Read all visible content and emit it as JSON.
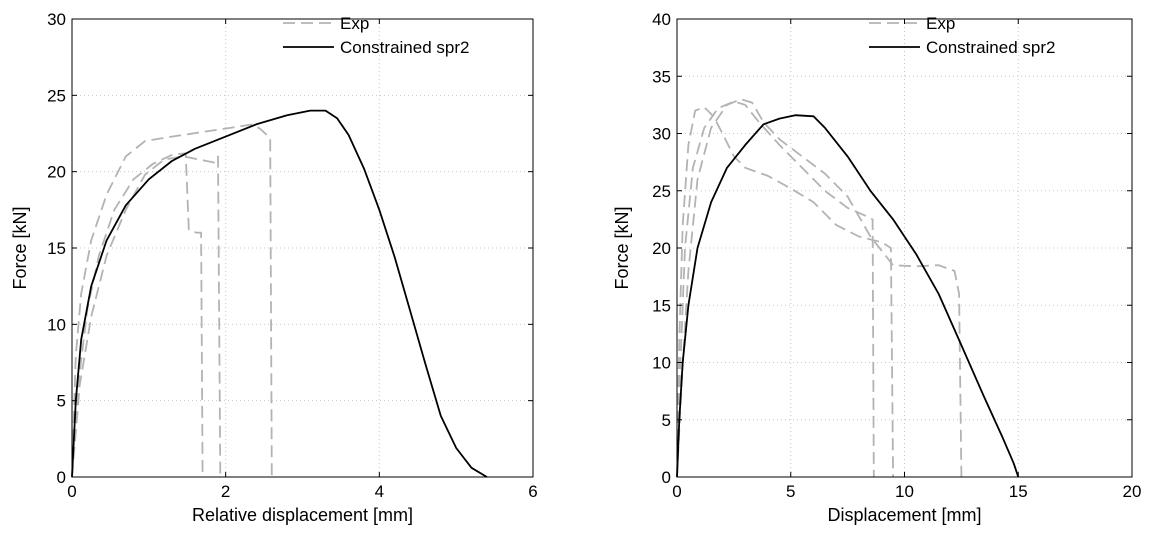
{
  "chart_data": [
    {
      "type": "line",
      "title": "",
      "xlabel": "Relative displacement [mm]",
      "ylabel": "Force [kN]",
      "xlim": [
        0,
        6
      ],
      "ylim": [
        0,
        30
      ],
      "xticks": [
        0,
        2,
        4,
        6
      ],
      "yticks": [
        0,
        5,
        10,
        15,
        20,
        25,
        30
      ],
      "grid": true,
      "legend_position": "top-right",
      "series": [
        {
          "name": "Exp",
          "color": "#b3b3b3",
          "dash": "dashed",
          "points": [
            [
              0,
              0
            ],
            [
              0.05,
              8
            ],
            [
              0.12,
              12
            ],
            [
              0.25,
              15.5
            ],
            [
              0.45,
              18.5
            ],
            [
              0.7,
              21
            ],
            [
              0.95,
              22
            ],
            [
              1.3,
              22.3
            ],
            [
              1.7,
              22.6
            ],
            [
              2.1,
              22.9
            ],
            [
              2.35,
              23.1
            ],
            [
              2.45,
              22.8
            ],
            [
              2.58,
              22.2
            ],
            [
              2.6,
              0
            ]
          ]
        },
        {
          "name": "",
          "color": "#b3b3b3",
          "dash": "dashed",
          "points": [
            [
              0,
              0
            ],
            [
              0.08,
              6
            ],
            [
              0.2,
              11
            ],
            [
              0.35,
              14.5
            ],
            [
              0.55,
              17.5
            ],
            [
              0.8,
              19.5
            ],
            [
              1.05,
              20.5
            ],
            [
              1.3,
              21.1
            ],
            [
              1.48,
              21.2
            ],
            [
              1.52,
              16.2
            ],
            [
              1.62,
              16.0
            ],
            [
              1.68,
              16.0
            ],
            [
              1.7,
              0
            ]
          ]
        },
        {
          "name": "",
          "color": "#b3b3b3",
          "dash": "dashed",
          "points": [
            [
              0,
              0
            ],
            [
              0.1,
              6
            ],
            [
              0.25,
              10.5
            ],
            [
              0.45,
              14.5
            ],
            [
              0.7,
              17.5
            ],
            [
              0.95,
              19.8
            ],
            [
              1.2,
              20.8
            ],
            [
              1.45,
              21.0
            ],
            [
              1.65,
              20.8
            ],
            [
              1.85,
              20.6
            ],
            [
              1.9,
              21.0
            ],
            [
              1.93,
              0
            ]
          ]
        },
        {
          "name": "Constrained spr2",
          "color": "#000000",
          "dash": "solid",
          "points": [
            [
              0,
              0
            ],
            [
              0.05,
              5
            ],
            [
              0.12,
              9
            ],
            [
              0.25,
              12.5
            ],
            [
              0.45,
              15.5
            ],
            [
              0.7,
              17.8
            ],
            [
              1.0,
              19.5
            ],
            [
              1.3,
              20.7
            ],
            [
              1.6,
              21.5
            ],
            [
              2.0,
              22.3
            ],
            [
              2.4,
              23.1
            ],
            [
              2.8,
              23.7
            ],
            [
              3.1,
              24.0
            ],
            [
              3.3,
              24.0
            ],
            [
              3.45,
              23.5
            ],
            [
              3.6,
              22.4
            ],
            [
              3.8,
              20.2
            ],
            [
              4.0,
              17.5
            ],
            [
              4.2,
              14.4
            ],
            [
              4.4,
              10.9
            ],
            [
              4.6,
              7.4
            ],
            [
              4.8,
              4.0
            ],
            [
              5.0,
              1.9
            ],
            [
              5.2,
              0.6
            ],
            [
              5.4,
              0
            ]
          ]
        }
      ]
    },
    {
      "type": "line",
      "title": "",
      "xlabel": "Displacement [mm]",
      "ylabel": "Force [kN]",
      "xlim": [
        0,
        20
      ],
      "ylim": [
        0,
        40
      ],
      "xticks": [
        0,
        5,
        10,
        15,
        20
      ],
      "yticks": [
        0,
        5,
        10,
        15,
        20,
        25,
        30,
        35,
        40
      ],
      "grid": true,
      "legend_position": "top-right",
      "series": [
        {
          "name": "Exp",
          "color": "#b3b3b3",
          "dash": "dashed",
          "points": [
            [
              0,
              0
            ],
            [
              0.1,
              12
            ],
            [
              0.25,
              22
            ],
            [
              0.5,
              29
            ],
            [
              0.8,
              32
            ],
            [
              1.2,
              32.3
            ],
            [
              1.6,
              31.5
            ],
            [
              2.0,
              30
            ],
            [
              2.5,
              28
            ],
            [
              3.0,
              27
            ],
            [
              4.0,
              26.3
            ],
            [
              5.0,
              25.2
            ],
            [
              6.0,
              24
            ],
            [
              7.0,
              22
            ],
            [
              8.0,
              21
            ],
            [
              9.0,
              20.5
            ],
            [
              9.4,
              20.0
            ],
            [
              9.5,
              0
            ]
          ]
        },
        {
          "name": "",
          "color": "#b3b3b3",
          "dash": "dashed",
          "points": [
            [
              0,
              0
            ],
            [
              0.15,
              10
            ],
            [
              0.35,
              20
            ],
            [
              0.7,
              27
            ],
            [
              1.2,
              30.5
            ],
            [
              1.8,
              32.2
            ],
            [
              2.5,
              32.8
            ],
            [
              3.0,
              32.5
            ],
            [
              3.6,
              31
            ],
            [
              4.5,
              29
            ],
            [
              5.5,
              27
            ],
            [
              6.5,
              25
            ],
            [
              7.5,
              23.5
            ],
            [
              8.3,
              22.8
            ],
            [
              8.6,
              22.5
            ],
            [
              8.65,
              0
            ]
          ]
        },
        {
          "name": "",
          "color": "#b3b3b3",
          "dash": "dashed",
          "points": [
            [
              0,
              0
            ],
            [
              0.2,
              8
            ],
            [
              0.5,
              18
            ],
            [
              0.9,
              26
            ],
            [
              1.5,
              30.5
            ],
            [
              2.2,
              32.5
            ],
            [
              2.8,
              33
            ],
            [
              3.3,
              32.7
            ],
            [
              3.8,
              31
            ],
            [
              4.5,
              29.5
            ],
            [
              5.5,
              28
            ],
            [
              6.5,
              26.5
            ],
            [
              7.5,
              24.5
            ],
            [
              8.5,
              21
            ],
            [
              9.5,
              18.5
            ],
            [
              10.5,
              18.4
            ],
            [
              11.5,
              18.5
            ],
            [
              12.2,
              18
            ],
            [
              12.4,
              16
            ],
            [
              12.5,
              0
            ]
          ]
        },
        {
          "name": "Constrained spr2",
          "color": "#000000",
          "dash": "solid",
          "points": [
            [
              0,
              0
            ],
            [
              0.1,
              5
            ],
            [
              0.25,
              10
            ],
            [
              0.5,
              15
            ],
            [
              0.9,
              20
            ],
            [
              1.5,
              24
            ],
            [
              2.2,
              27
            ],
            [
              3.0,
              29
            ],
            [
              3.8,
              30.8
            ],
            [
              4.5,
              31.3
            ],
            [
              5.2,
              31.6
            ],
            [
              6.0,
              31.5
            ],
            [
              6.5,
              30.5
            ],
            [
              7.5,
              28
            ],
            [
              8.5,
              25
            ],
            [
              9.5,
              22.5
            ],
            [
              10.5,
              19.5
            ],
            [
              11.5,
              16
            ],
            [
              12.5,
              11.5
            ],
            [
              13.5,
              7
            ],
            [
              14.3,
              3.5
            ],
            [
              14.8,
              1.2
            ],
            [
              15.0,
              0
            ]
          ]
        }
      ]
    }
  ]
}
